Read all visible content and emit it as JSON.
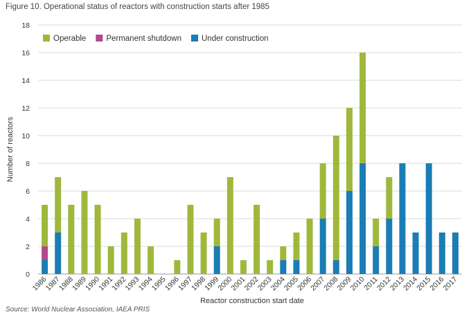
{
  "figure": {
    "title": "Figure 10. Operational status of reactors with construction starts after 1985",
    "source": "Source: World Nuclear Association, IAEA PRIS"
  },
  "chart_data": {
    "type": "bar",
    "stacked": true,
    "categories": [
      "1986",
      "1987",
      "1988",
      "1989",
      "1990",
      "1991",
      "1992",
      "1993",
      "1994",
      "1995",
      "1996",
      "1997",
      "1998",
      "1999",
      "2000",
      "2001",
      "2002",
      "2003",
      "2004",
      "2005",
      "2006",
      "2007",
      "2008",
      "2009",
      "2010",
      "2011",
      "2012",
      "2013",
      "2014",
      "2015",
      "2016",
      "2017"
    ],
    "series": [
      {
        "name": "Under construction",
        "color": "#1b7db5",
        "values": [
          1,
          3,
          0,
          0,
          0,
          0,
          0,
          0,
          0,
          0,
          0,
          0,
          0,
          2,
          0,
          0,
          0,
          0,
          1,
          1,
          0,
          4,
          1,
          6,
          8,
          2,
          4,
          8,
          3,
          8,
          3,
          3
        ]
      },
      {
        "name": "Permanent shutdown",
        "color": "#b04a8c",
        "values": [
          1,
          0,
          0,
          0,
          0,
          0,
          0,
          0,
          0,
          0,
          0,
          0,
          0,
          0,
          0,
          0,
          0,
          0,
          0,
          0,
          0,
          0,
          0,
          0,
          0,
          0,
          0,
          0,
          0,
          0,
          0,
          0
        ]
      },
      {
        "name": "Operable",
        "color": "#9fb83c",
        "values": [
          3,
          4,
          5,
          6,
          5,
          2,
          3,
          4,
          2,
          0,
          1,
          5,
          3,
          2,
          7,
          1,
          5,
          1,
          1,
          2,
          4,
          4,
          9,
          6,
          8,
          2,
          3,
          0,
          0,
          0,
          0,
          0
        ]
      }
    ],
    "legend_order": [
      "Operable",
      "Permanent shutdown",
      "Under construction"
    ],
    "xlabel": "Reactor construction start date",
    "ylabel": "Number of reactors",
    "ylim": [
      0,
      18
    ],
    "yticks": [
      0,
      2,
      4,
      6,
      8,
      10,
      12,
      14,
      16,
      18
    ],
    "grid": true,
    "legend_position": "top-left"
  }
}
